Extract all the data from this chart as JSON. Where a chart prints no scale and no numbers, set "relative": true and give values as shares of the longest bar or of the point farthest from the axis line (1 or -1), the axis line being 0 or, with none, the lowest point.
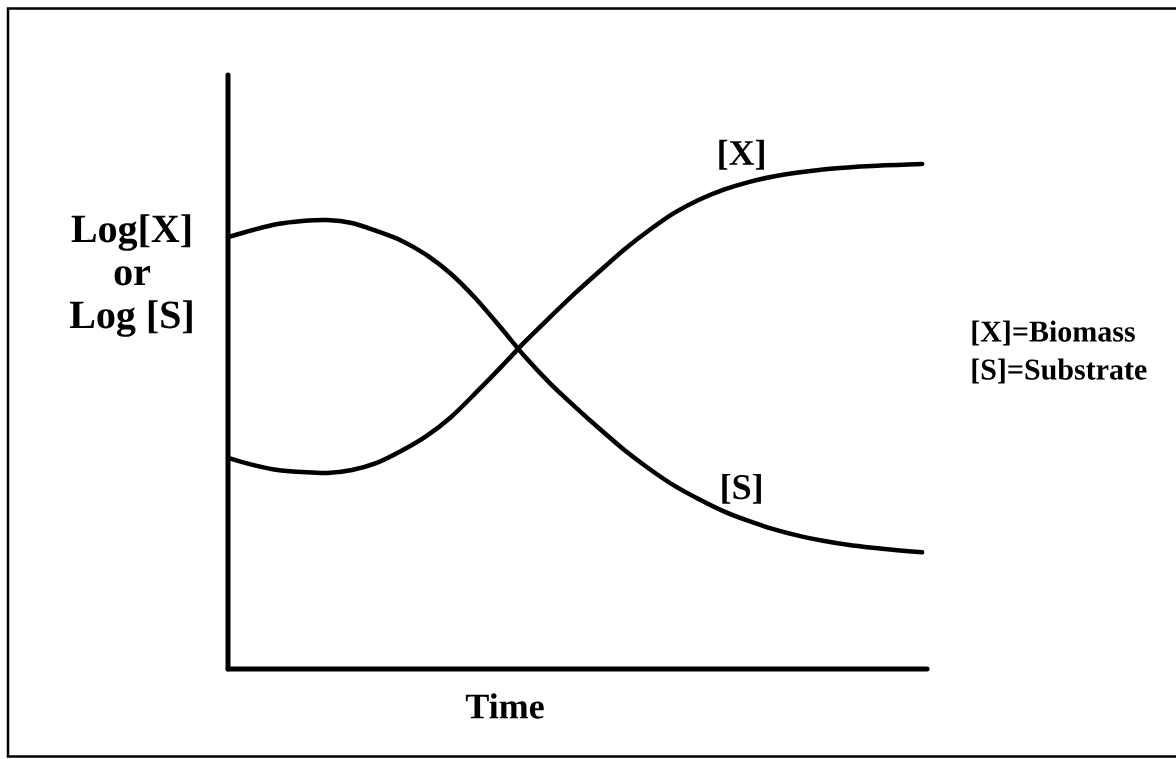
{
  "chart_data": {
    "type": "line",
    "relative": true,
    "xlabel": "Time",
    "ylabel": "Log[X] or Log [S]",
    "marker": "none",
    "line_style": "solid",
    "categories": [
      null,
      null,
      null,
      null,
      null,
      null,
      null,
      null,
      null,
      null,
      null,
      null,
      null,
      null,
      null,
      null,
      null,
      null,
      null,
      null,
      null,
      null,
      null,
      null,
      null,
      null,
      null,
      null,
      null
    ],
    "series": [
      {
        "name": "[X]",
        "color": "#000000",
        "values": [
          0.418,
          0.404,
          0.394,
          0.39,
          0.388,
          0.394,
          0.408,
          0.432,
          0.461,
          0.499,
          0.547,
          0.597,
          0.649,
          0.697,
          0.744,
          0.788,
          0.831,
          0.869,
          0.903,
          0.929,
          0.949,
          0.964,
          0.975,
          0.983,
          0.989,
          0.993,
          0.996,
          0.998,
          1.0
        ]
      },
      {
        "name": "[S]",
        "color": "#000000",
        "values": [
          0.855,
          0.869,
          0.881,
          0.887,
          0.889,
          0.883,
          0.867,
          0.848,
          0.82,
          0.782,
          0.733,
          0.676,
          0.617,
          0.565,
          0.519,
          0.475,
          0.433,
          0.396,
          0.363,
          0.336,
          0.312,
          0.293,
          0.277,
          0.264,
          0.254,
          0.246,
          0.24,
          0.235,
          0.231
        ]
      }
    ],
    "annotations": [
      "[X]=Biomass",
      "[S]=Substrate"
    ]
  }
}
